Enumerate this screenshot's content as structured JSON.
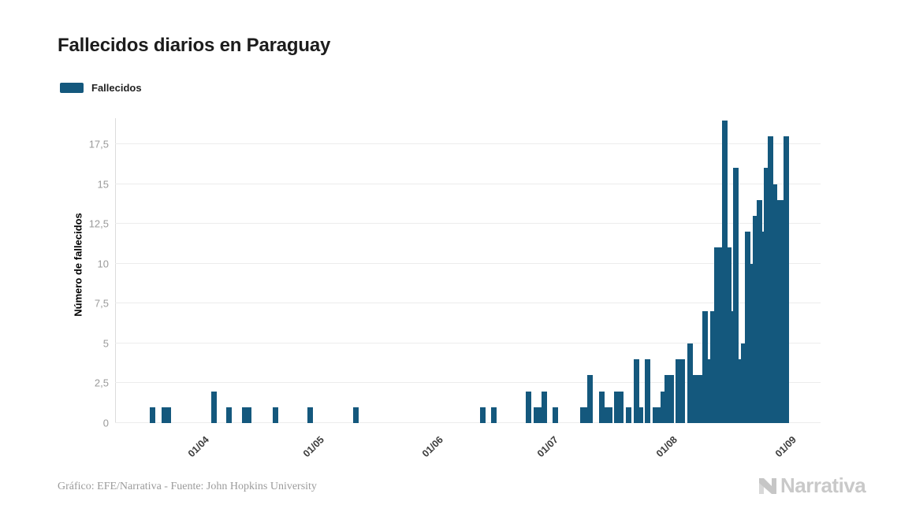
{
  "title": "Fallecidos diarios en Paraguay",
  "legend": {
    "label": "Fallecidos",
    "color": "#14587D"
  },
  "y_axis": {
    "title": "Número de fallecidos",
    "tick_values": [
      0,
      2.5,
      5,
      7.5,
      10,
      12.5,
      15,
      17.5
    ],
    "tick_labels": [
      "0",
      "2,5",
      "5",
      "7,5",
      "10",
      "12,5",
      "15",
      "17,5"
    ]
  },
  "x_axis": {
    "ticks": [
      {
        "label": "01/04",
        "date": "2020-04-01"
      },
      {
        "label": "01/05",
        "date": "2020-05-01"
      },
      {
        "label": "01/06",
        "date": "2020-06-01"
      },
      {
        "label": "01/07",
        "date": "2020-07-01"
      },
      {
        "label": "01/08",
        "date": "2020-08-01"
      },
      {
        "label": "01/09",
        "date": "2020-09-01"
      }
    ]
  },
  "footer": {
    "credit": "Gráfico: EFE/Narrativa - Fuente: John Hopkins University"
  },
  "logo": {
    "text": "Narrativa"
  },
  "chart_data": {
    "type": "bar",
    "title": "Fallecidos diarios en Paraguay",
    "series_name": "Fallecidos",
    "xlabel": "",
    "ylabel": "Número de fallecidos",
    "ylim": [
      0,
      19
    ],
    "x_range": [
      "2020-03-10",
      "2020-09-03"
    ],
    "grid": true,
    "legend_position": "top-left",
    "bar_color": "#14587D",
    "dates": [
      "2020-03-20",
      "2020-03-23",
      "2020-03-24",
      "2020-04-05",
      "2020-04-09",
      "2020-04-13",
      "2020-04-14",
      "2020-04-21",
      "2020-04-30",
      "2020-05-12",
      "2020-06-14",
      "2020-06-17",
      "2020-06-26",
      "2020-06-28",
      "2020-06-29",
      "2020-06-30",
      "2020-07-03",
      "2020-07-10",
      "2020-07-11",
      "2020-07-12",
      "2020-07-15",
      "2020-07-16",
      "2020-07-17",
      "2020-07-19",
      "2020-07-20",
      "2020-07-22",
      "2020-07-24",
      "2020-07-25",
      "2020-07-27",
      "2020-07-29",
      "2020-07-30",
      "2020-07-31",
      "2020-08-01",
      "2020-08-02",
      "2020-08-04",
      "2020-08-05",
      "2020-08-07",
      "2020-08-08",
      "2020-08-09",
      "2020-08-10",
      "2020-08-11",
      "2020-08-12",
      "2020-08-13",
      "2020-08-14",
      "2020-08-15",
      "2020-08-16",
      "2020-08-17",
      "2020-08-18",
      "2020-08-19",
      "2020-08-20",
      "2020-08-21",
      "2020-08-22",
      "2020-08-23",
      "2020-08-24",
      "2020-08-25",
      "2020-08-26",
      "2020-08-27",
      "2020-08-28",
      "2020-08-29",
      "2020-08-30",
      "2020-08-31",
      "2020-09-01"
    ],
    "values": [
      1,
      1,
      1,
      2,
      1,
      1,
      1,
      1,
      1,
      1,
      1,
      1,
      2,
      1,
      1,
      2,
      1,
      1,
      1,
      3,
      2,
      1,
      1,
      2,
      2,
      1,
      4,
      1,
      4,
      1,
      1,
      2,
      3,
      3,
      4,
      4,
      5,
      3,
      3,
      3,
      7,
      4,
      7,
      11,
      11,
      19,
      11,
      7,
      16,
      4,
      5,
      12,
      10,
      13,
      14,
      12,
      16,
      18,
      15,
      14,
      14,
      18
    ]
  }
}
